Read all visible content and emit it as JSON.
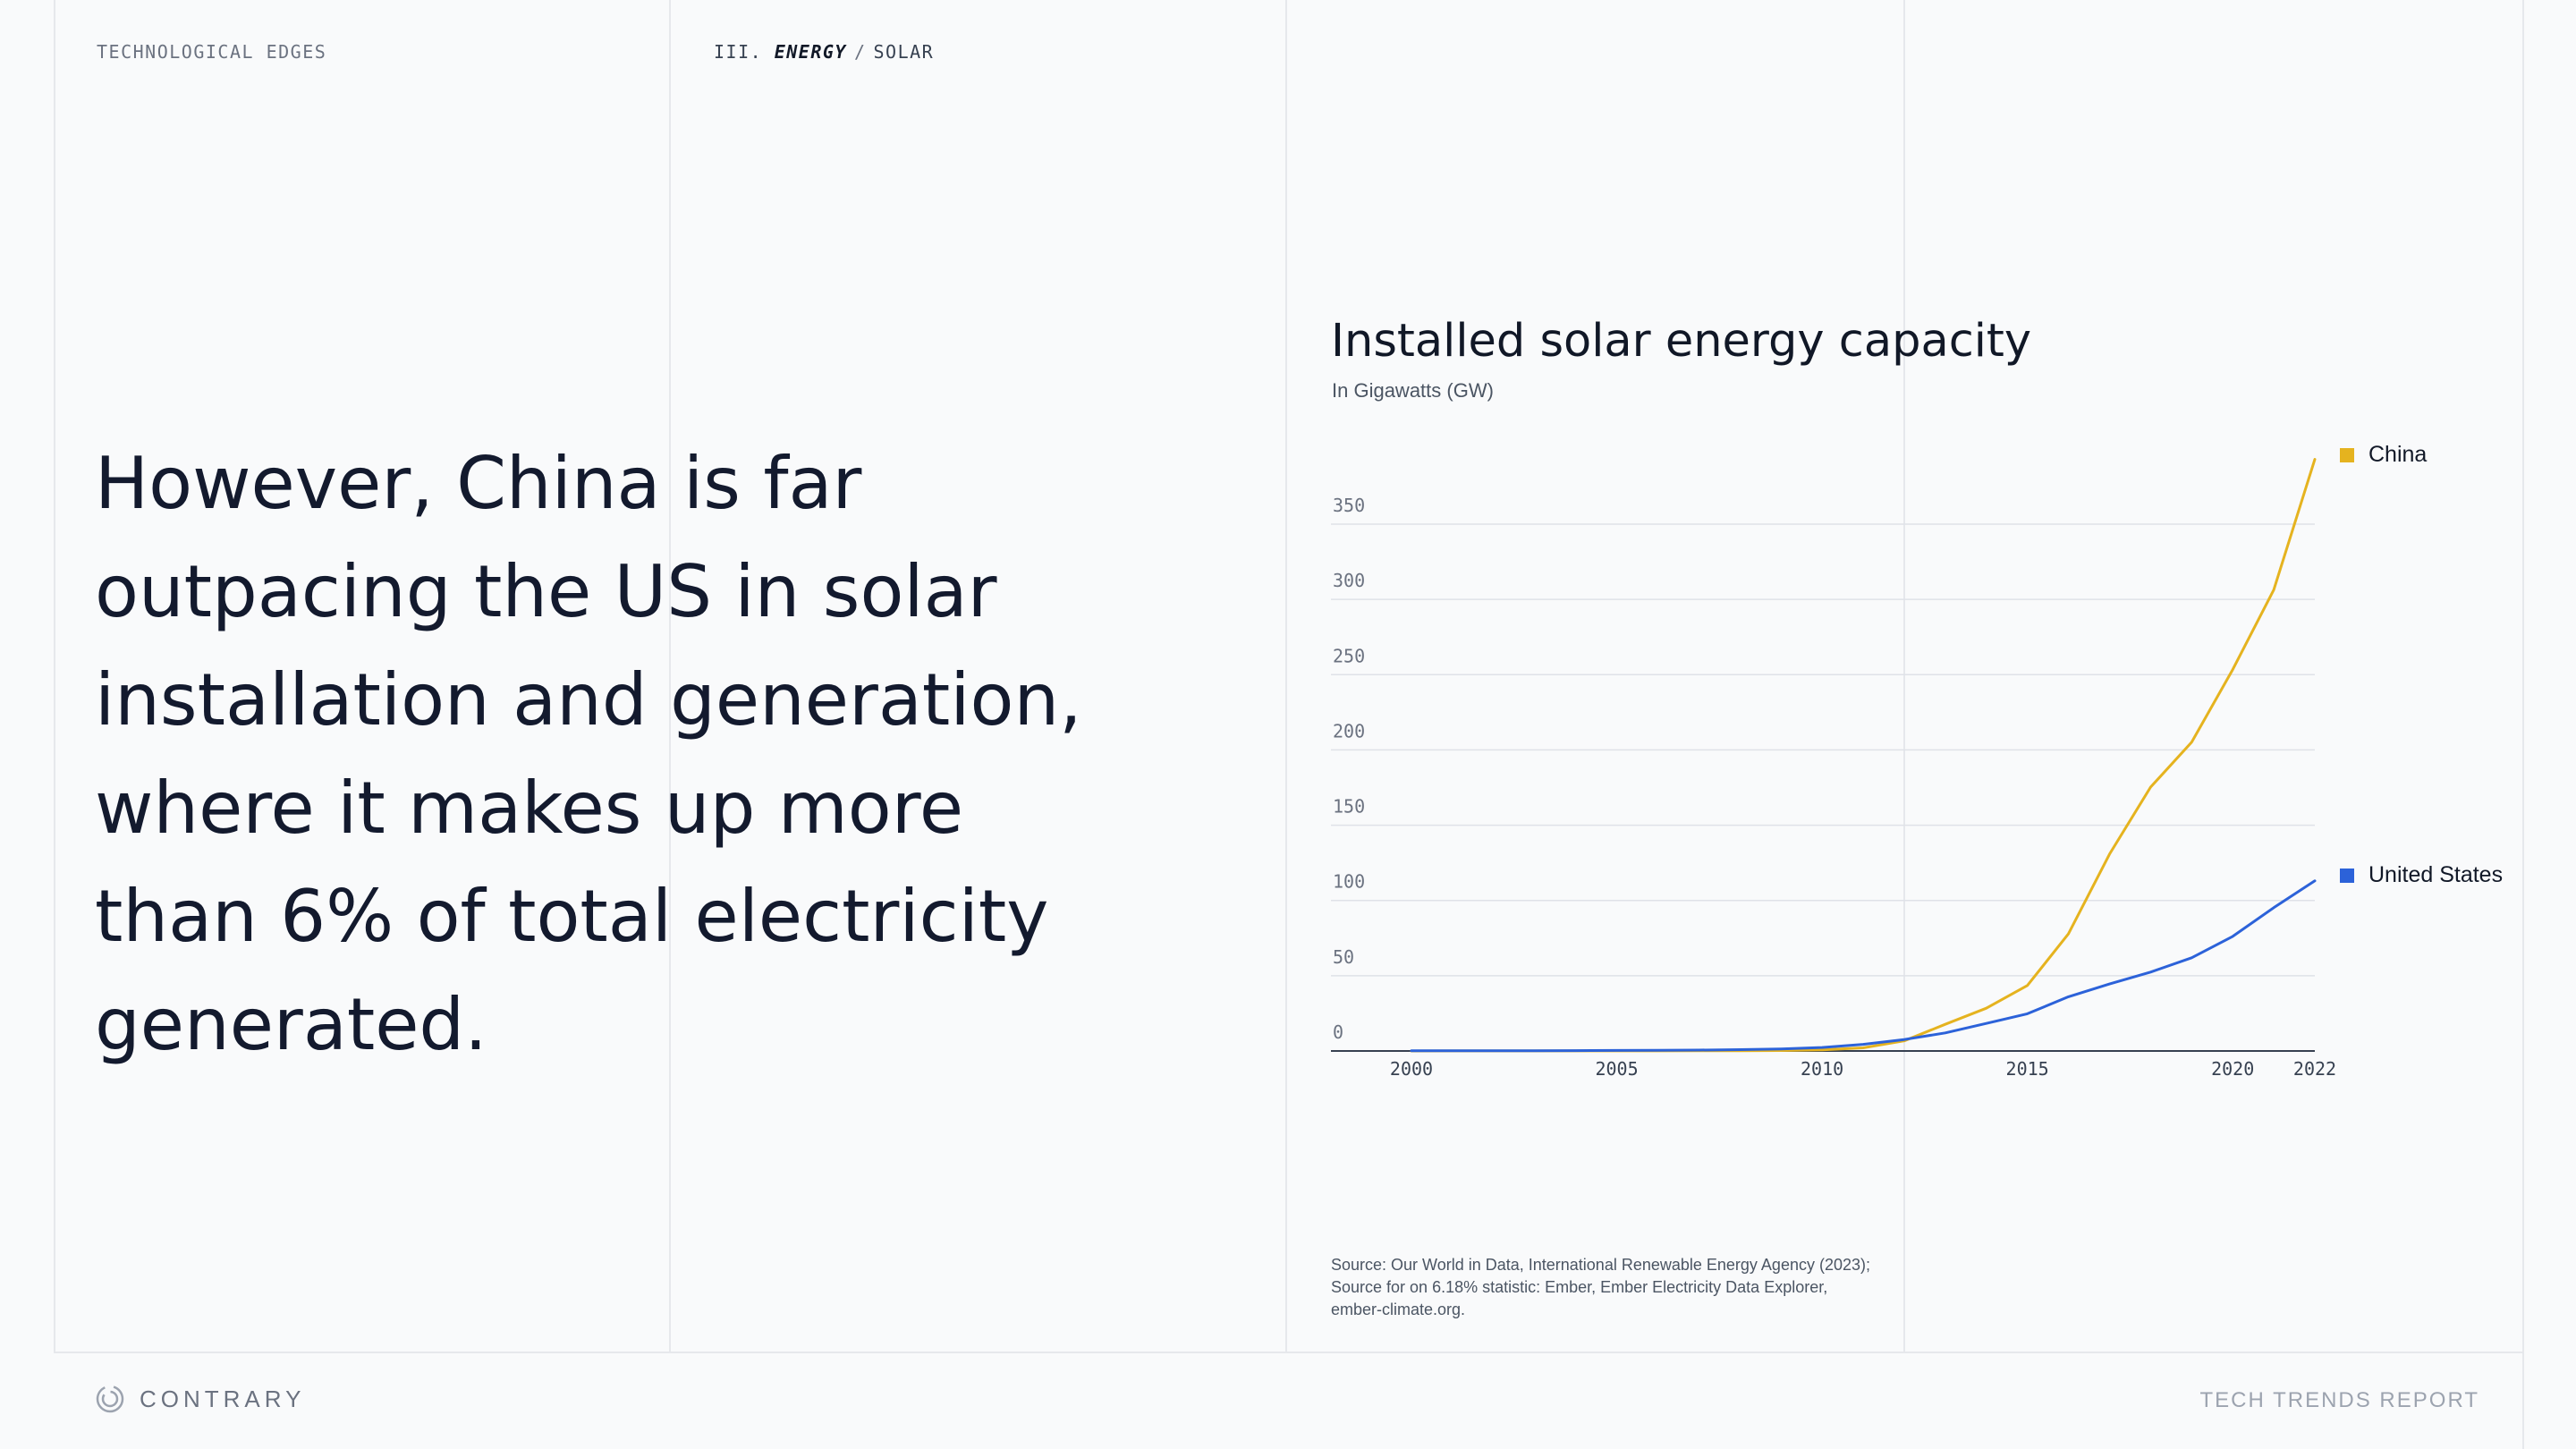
{
  "header": {
    "section_label": "TECHNOLOGICAL EDGES",
    "breadcrumb_prefix": "III.",
    "breadcrumb_section": "ENERGY",
    "breadcrumb_separator": "/",
    "breadcrumb_page": "SOLAR"
  },
  "headline": "However, China is far outpacing the US in solar installation and generation, where it makes up more than 6% of total electricity generated.",
  "chart_data": {
    "type": "line",
    "title": "Installed solar energy capacity",
    "subtitle": "In Gigawatts (GW)",
    "xlim": [
      2000,
      2022
    ],
    "ylim": [
      0,
      350
    ],
    "y_ticks": [
      "0",
      "50",
      "100",
      "150",
      "200",
      "250",
      "300",
      "350"
    ],
    "x_ticks": [
      "2000",
      "2005",
      "2010",
      "2015",
      "2020",
      "2022"
    ],
    "grid": true,
    "legend_placement": "inline at line ends",
    "x": [
      2000,
      2001,
      2002,
      2003,
      2004,
      2005,
      2006,
      2007,
      2008,
      2009,
      2010,
      2011,
      2012,
      2013,
      2014,
      2015,
      2016,
      2017,
      2018,
      2019,
      2020,
      2021,
      2022
    ],
    "series": [
      {
        "name": "China",
        "color": "#e5b31f",
        "values": [
          0.02,
          0.03,
          0.05,
          0.06,
          0.07,
          0.07,
          0.08,
          0.1,
          0.14,
          0.3,
          0.8,
          2.1,
          6.7,
          17.7,
          28.4,
          43.5,
          77.8,
          130.8,
          175.3,
          205.1,
          253.4,
          306.4,
          393.0
        ]
      },
      {
        "name": "United States",
        "color": "#2c62d9",
        "values": [
          0.1,
          0.11,
          0.13,
          0.17,
          0.24,
          0.34,
          0.48,
          0.6,
          0.9,
          1.3,
          2.3,
          4.4,
          7.6,
          12.0,
          18.3,
          24.7,
          36.0,
          44.5,
          52.4,
          61.9,
          76.1,
          95.2,
          113.0
        ]
      }
    ]
  },
  "source": {
    "line1": "Source: Our World in Data, International Renewable Energy Agency (2023);",
    "line2": "Source for on 6.18% statistic: Ember, Ember Electricity Data Explorer,",
    "line3": "ember-climate.org."
  },
  "footer": {
    "brand": "CONTRARY",
    "logo_icon": "contrary-logo-icon",
    "report_title": "TECH TRENDS REPORT"
  },
  "colors": {
    "background": "#f9fafb",
    "china": "#e5b31f",
    "united_states": "#2c62d9",
    "grid": "#e5e7eb",
    "text": "#131a2e"
  }
}
